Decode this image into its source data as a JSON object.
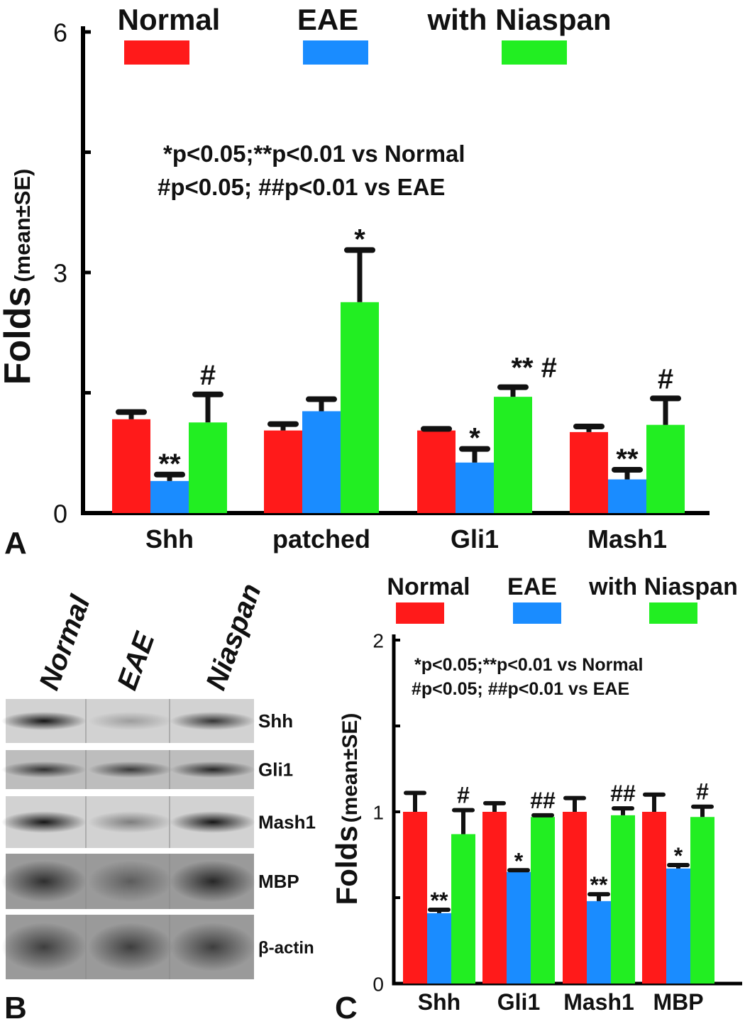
{
  "panels": [
    {
      "panel_label": "A",
      "legend": [
        {
          "label": "Normal",
          "color": "#ff1a1a"
        },
        {
          "label": "EAE",
          "color": "#1a8cff"
        },
        {
          "label": "with Niaspan",
          "color": "#22ee22"
        }
      ],
      "stats_text": [
        "*p<0.05;**p<0.01 vs Normal",
        "#p<0.05; ##p<0.01 vs EAE"
      ],
      "ylabel_main": "Folds",
      "ylabel_sub": "(mean±SE)"
    },
    {
      "panel_label": "B",
      "lane_labels": [
        "Normal",
        "EAE",
        "Niaspan"
      ],
      "band_labels": [
        "Shh",
        "Gli1",
        "Mash1",
        "MBP",
        "β-actin"
      ],
      "band_intensity": [
        [
          0.9,
          0.25,
          0.75
        ],
        [
          0.75,
          0.7,
          0.8
        ],
        [
          0.9,
          0.4,
          0.9
        ],
        [
          0.7,
          0.4,
          0.75
        ],
        [
          0.6,
          0.6,
          0.6
        ]
      ]
    },
    {
      "panel_label": "C",
      "legend": [
        {
          "label": "Normal",
          "color": "#ff1a1a"
        },
        {
          "label": "EAE",
          "color": "#1a8cff"
        },
        {
          "label": "with Niaspan",
          "color": "#22ee22"
        }
      ],
      "stats_text": [
        "*p<0.05;**p<0.01 vs Normal",
        "#p<0.05; ##p<0.01 vs EAE"
      ],
      "ylabel_main": "Folds",
      "ylabel_sub": "(mean±SE)"
    }
  ],
  "chart_data": [
    {
      "type": "bar",
      "panel": "A",
      "categories": [
        "Shh",
        "patched",
        "Gli1",
        "Mash1"
      ],
      "series": [
        {
          "name": "Normal",
          "color": "#ff1a1a",
          "values": [
            1.17,
            1.03,
            1.03,
            1.01
          ],
          "errors": [
            0.09,
            0.08,
            0.02,
            0.07
          ],
          "marks": [
            "",
            "",
            "",
            ""
          ]
        },
        {
          "name": "EAE",
          "color": "#1a8cff",
          "values": [
            0.4,
            1.27,
            0.63,
            0.42
          ],
          "errors": [
            0.08,
            0.15,
            0.17,
            0.12
          ],
          "marks": [
            "**",
            "",
            "*",
            "**"
          ]
        },
        {
          "name": "with Niaspan",
          "color": "#22ee22",
          "values": [
            1.13,
            2.63,
            1.45,
            1.1
          ],
          "errors": [
            0.35,
            0.65,
            0.12,
            0.33
          ],
          "marks": [
            "#",
            "*",
            "** #",
            "#"
          ]
        }
      ],
      "yticks": [
        0,
        3,
        6
      ],
      "ylim": [
        0,
        6
      ]
    },
    {
      "type": "bar",
      "panel": "C",
      "categories": [
        "Shh",
        "Gli1",
        "Mash1",
        "MBP"
      ],
      "series": [
        {
          "name": "Normal",
          "color": "#ff1a1a",
          "values": [
            1.0,
            1.0,
            1.0,
            1.0
          ],
          "errors": [
            0.11,
            0.05,
            0.08,
            0.1
          ],
          "marks": [
            "",
            "",
            "",
            ""
          ]
        },
        {
          "name": "EAE",
          "color": "#1a8cff",
          "values": [
            0.41,
            0.65,
            0.48,
            0.67
          ],
          "errors": [
            0.02,
            0.01,
            0.04,
            0.02
          ],
          "marks": [
            "**",
            "*",
            "**",
            "*"
          ]
        },
        {
          "name": "with Niaspan",
          "color": "#22ee22",
          "values": [
            0.87,
            0.97,
            0.98,
            0.97
          ],
          "errors": [
            0.14,
            0.01,
            0.04,
            0.06
          ],
          "marks": [
            "#",
            "##",
            "##",
            "#"
          ]
        }
      ],
      "yticks": [
        0,
        1,
        2
      ],
      "ylim": [
        0,
        2
      ]
    }
  ]
}
